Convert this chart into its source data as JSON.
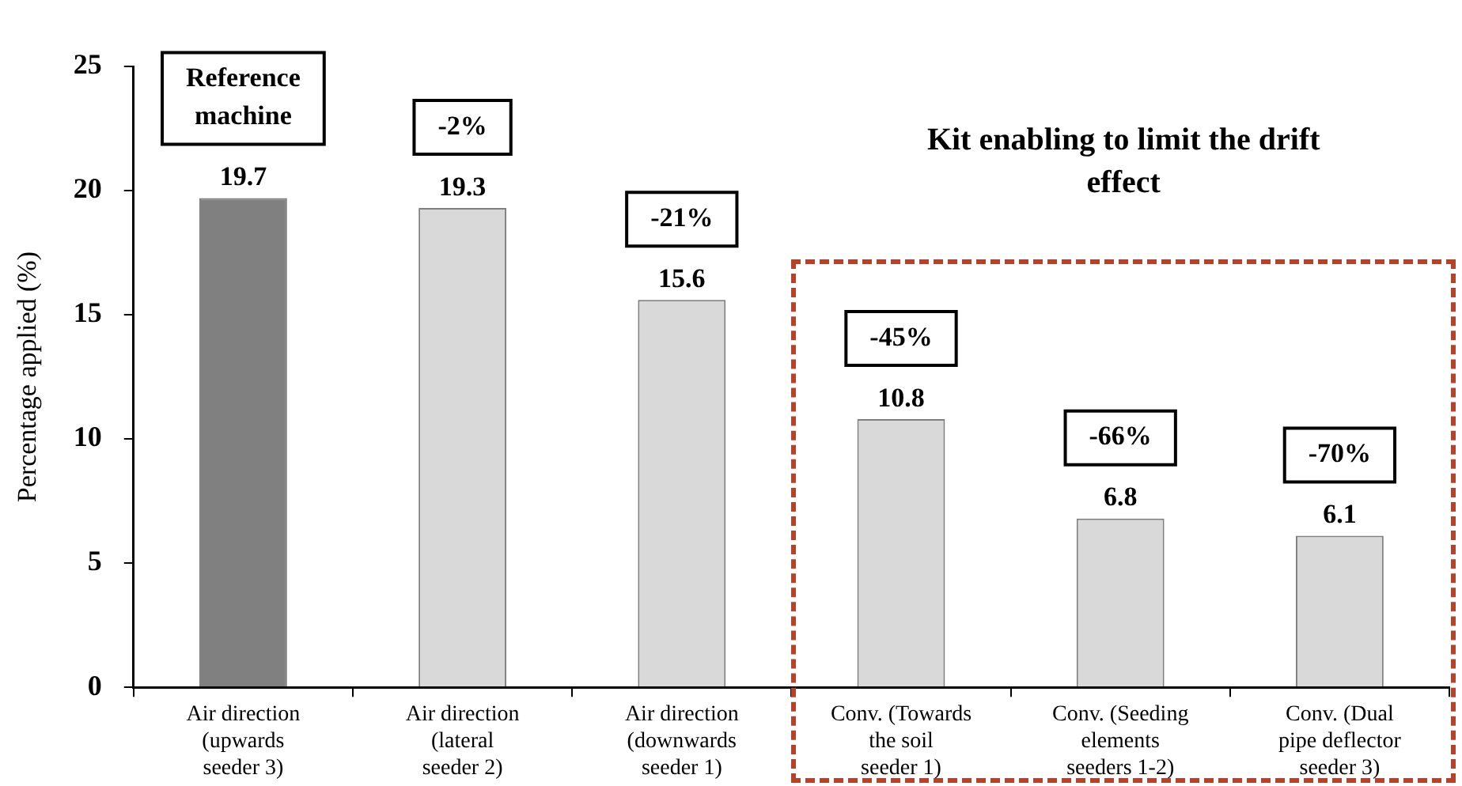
{
  "chart_data": {
    "type": "bar",
    "ylabel": "Percentage applied (%)",
    "categories": [
      "Air direction (upwards seeder 3)",
      "Air direction (lateral seeder 2)",
      "Air direction (downwards seeder 1)",
      "Conv. (Towards the soil seeder 1)",
      "Conv. (Seeding elements seeders 1-2)",
      "Conv.  (Dual pipe deflector seeder 3)"
    ],
    "values": [
      19.7,
      19.3,
      15.6,
      10.8,
      6.8,
      6.1
    ],
    "colors": [
      "#808080",
      "#d9d9d9",
      "#d9d9d9",
      "#d9d9d9",
      "#d9d9d9",
      "#d9d9d9"
    ],
    "ylim": [
      0,
      25
    ],
    "yticks": [
      0,
      5,
      10,
      15,
      20,
      25
    ],
    "grid": false,
    "legend": false,
    "data_labels": true,
    "annotations": [
      "Reference machine",
      "-2%",
      "-21%",
      "-45%",
      "-66%",
      "-70%",
      "Kit enabling to limit the drift effect"
    ]
  }
}
